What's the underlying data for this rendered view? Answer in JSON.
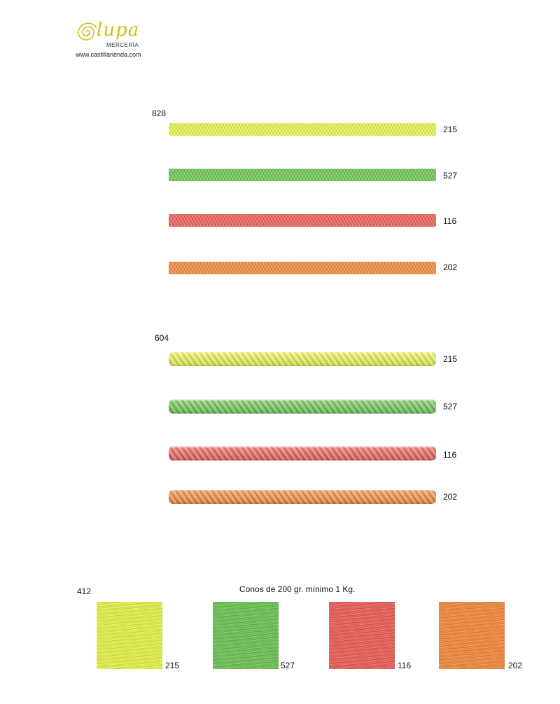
{
  "brand": {
    "script": "lupa",
    "sub": "MERCERÍA",
    "website": "www.castillarienda.com"
  },
  "colors": {
    "yellow": "#e6f74a",
    "green": "#6cc653",
    "red": "#ee5e55",
    "orange": "#f58a3b"
  },
  "section_828": {
    "code": "828",
    "items": [
      {
        "number": "215",
        "color": "yellow"
      },
      {
        "number": "527",
        "color": "green"
      },
      {
        "number": "116",
        "color": "red"
      },
      {
        "number": "202",
        "color": "orange"
      }
    ]
  },
  "section_604": {
    "code": "604",
    "items": [
      {
        "number": "215",
        "color": "yellow"
      },
      {
        "number": "527",
        "color": "green"
      },
      {
        "number": "116",
        "color": "red"
      },
      {
        "number": "202",
        "color": "orange"
      }
    ]
  },
  "section_412": {
    "code": "412",
    "caption": "Conos de 200 gr. mínimo 1 Kg.",
    "items": [
      {
        "number": "215",
        "color": "yellow"
      },
      {
        "number": "527",
        "color": "green"
      },
      {
        "number": "116",
        "color": "red"
      },
      {
        "number": "202",
        "color": "orange"
      }
    ]
  }
}
